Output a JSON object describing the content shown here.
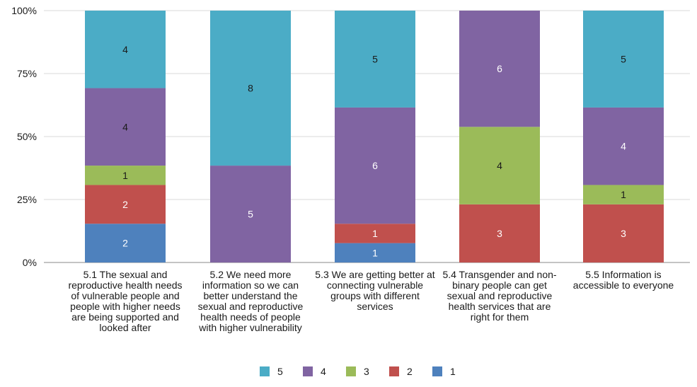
{
  "chart_data": {
    "type": "bar",
    "stacked": "percent",
    "categories": [
      "5.1 The sexual and reproductive health needs of vulnerable people and people with higher needs are being supported and looked after",
      "5.2 We need more information so we can better understand the sexual and reproductive health needs of people with higher vulnerability",
      "5.3 We are getting better at connecting vulnerable groups with different services",
      "5.4 Transgender and non-binary people can get sexual and reproductive health services that are right for them",
      "5.5 Information is accessible to everyone"
    ],
    "series": [
      {
        "name": "1",
        "color": "#4e81bd",
        "values": [
          2,
          0,
          1,
          0,
          0
        ]
      },
      {
        "name": "2",
        "color": "#c0504d",
        "values": [
          2,
          0,
          1,
          3,
          3
        ]
      },
      {
        "name": "3",
        "color": "#9bbb59",
        "values": [
          1,
          0,
          0,
          4,
          1
        ]
      },
      {
        "name": "4",
        "color": "#8064a2",
        "values": [
          4,
          5,
          6,
          6,
          4
        ]
      },
      {
        "name": "5",
        "color": "#4bacc6",
        "values": [
          4,
          8,
          5,
          0,
          5
        ]
      }
    ],
    "yticks": [
      "0%",
      "25%",
      "50%",
      "75%",
      "100%"
    ],
    "ylim": [
      0,
      100
    ],
    "legend": {
      "position": "bottom",
      "order": [
        "5",
        "4",
        "3",
        "2",
        "1"
      ]
    },
    "grid": true
  }
}
